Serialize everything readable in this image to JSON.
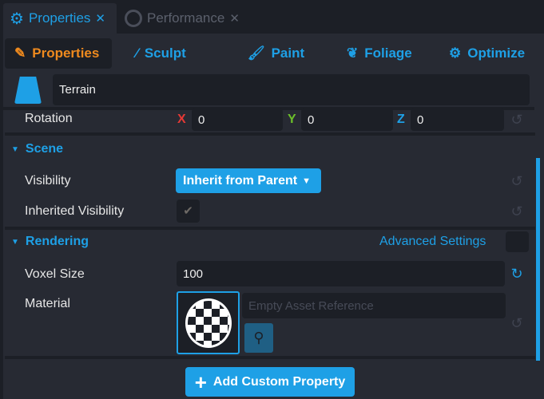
{
  "tabs": [
    {
      "label": "Properties",
      "icon": "gear-wrench-icon",
      "close": "✕",
      "active": true
    },
    {
      "label": "Performance",
      "icon": "gauge-icon",
      "close": "✕",
      "active": false
    }
  ],
  "toolbar": [
    {
      "label": "Properties",
      "icon": "terrain-properties-icon",
      "active": true
    },
    {
      "label": "Sculpt",
      "icon": "sculpt-brush-icon"
    },
    {
      "label": "Paint",
      "icon": "paint-brush-icon"
    },
    {
      "label": "Foliage",
      "icon": "leaf-icon"
    },
    {
      "label": "Optimize",
      "icon": "optimize-icon"
    }
  ],
  "name_field": {
    "value": "Terrain",
    "icon": "terrain-icon"
  },
  "rotation": {
    "label": "Rotation",
    "x_label": "X",
    "x": "0",
    "y_label": "Y",
    "y": "0",
    "z_label": "Z",
    "z": "0"
  },
  "scene": {
    "title": "Scene",
    "visibility_label": "Visibility",
    "visibility_value": "Inherit from Parent",
    "inherited_label": "Inherited Visibility",
    "inherited_checked": true
  },
  "rendering": {
    "title": "Rendering",
    "advanced_label": "Advanced Settings",
    "voxel_label": "Voxel Size",
    "voxel_value": "100",
    "material_label": "Material",
    "material_placeholder": "Empty Asset Reference"
  },
  "add_button": {
    "label": "Add Custom Property",
    "icon": "plus-icon"
  },
  "colors": {
    "accent": "#1ea0e6",
    "active_tool": "#ef8a1e",
    "x": "#e53935",
    "y": "#6cc02a",
    "z": "#1ea0e6"
  }
}
